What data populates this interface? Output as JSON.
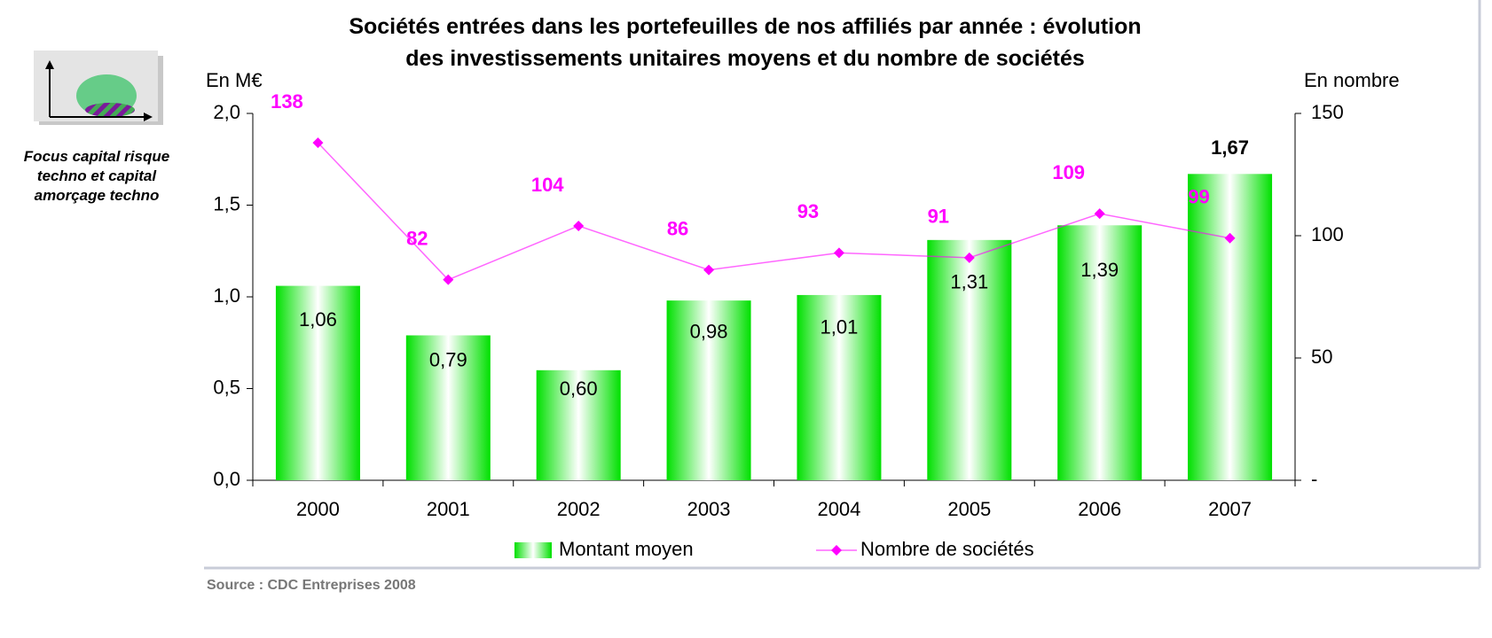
{
  "chart_data": {
    "type": "bar_line",
    "title": "Sociétés entrées dans les portefeuilles de nos affiliés par année : évolution des investissements unitaires moyens et du nombre de sociétés",
    "y_label": "En M€",
    "y2_label": "En nombre",
    "note": "Focus capital risque techno et capital amorçage techno",
    "source": "Source : CDC Entreprises 2008",
    "categories": [
      "2000",
      "2001",
      "2002",
      "2003",
      "2004",
      "2005",
      "2006",
      "2007"
    ],
    "series": [
      {
        "name": "Montant moyen",
        "type": "bar",
        "color": "#00e000",
        "values": [
          1.06,
          0.79,
          0.6,
          0.98,
          1.01,
          1.31,
          1.39,
          1.67
        ],
        "value_labels": [
          "1,06",
          "0,79",
          "0,60",
          "0,98",
          "1,01",
          "1,31",
          "1,39",
          "1,67"
        ]
      },
      {
        "name": "Nombre de sociétés",
        "type": "line",
        "axis": "y2",
        "color": "#ff00ff",
        "values": [
          138,
          82,
          104,
          86,
          93,
          91,
          109,
          99
        ]
      }
    ],
    "ylim": [
      0,
      2
    ],
    "yticks": [
      {
        "value": 0,
        "label": "0,0"
      },
      {
        "value": 0.5,
        "label": "0,5"
      },
      {
        "value": 1,
        "label": "1,0"
      },
      {
        "value": 1.5,
        "label": "1,5"
      },
      {
        "value": 2,
        "label": "2,0"
      }
    ],
    "y2lim": [
      0,
      150
    ],
    "y2ticks": [
      {
        "value": 0,
        "label": "-"
      },
      50,
      100,
      150
    ]
  }
}
